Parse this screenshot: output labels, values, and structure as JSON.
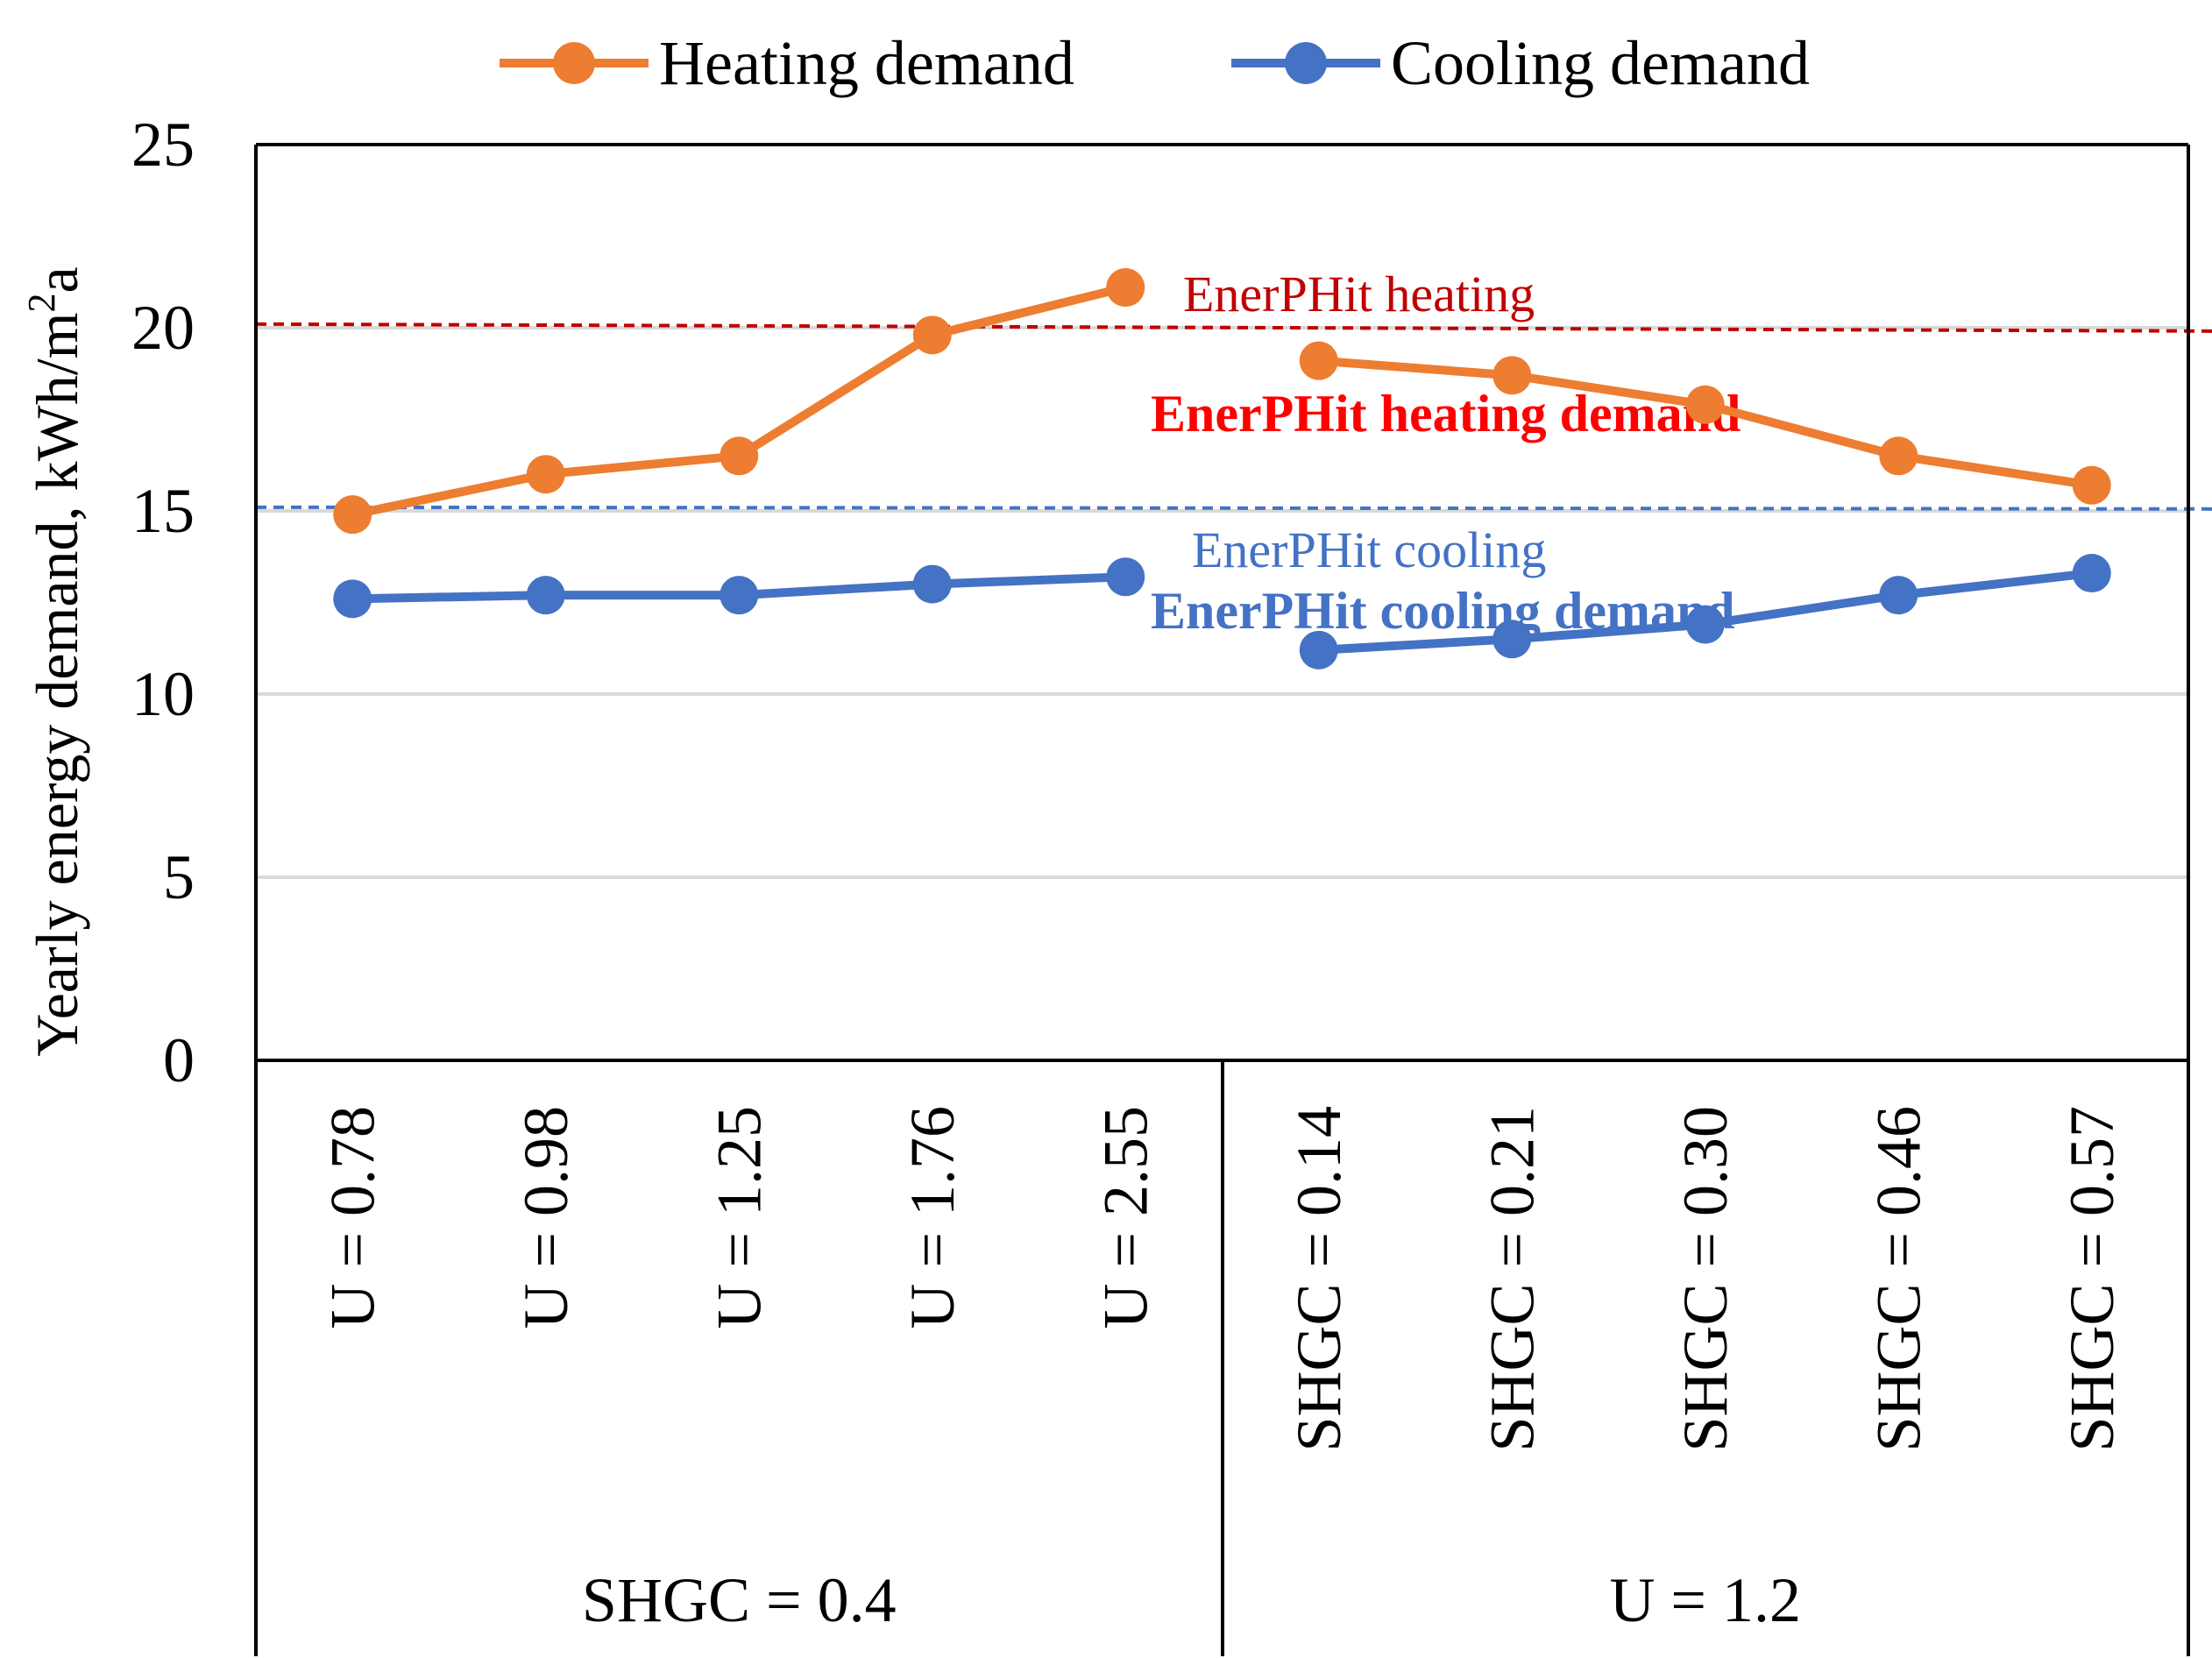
{
  "chart_data": {
    "type": "line",
    "ylabel": "Yearly energy  demand, kWh/m",
    "ylabel_sup": "2",
    "ylabel_tail": "a",
    "ylim": [
      0,
      25
    ],
    "yticks": [
      "0",
      "5",
      "10",
      "15",
      "20",
      "25"
    ],
    "categories": [
      "U = 0.78",
      "U = 0.98",
      "U = 1.25",
      "U = 1.76",
      "U = 2.55",
      "SHGC = 0.14",
      "SHGC = 0.21",
      "SHGC = 0.30",
      "SHGC = 0.46",
      "SHGC = 0.57"
    ],
    "groups": [
      {
        "label": "SHGC = 0.4",
        "start": 0,
        "end": 4
      },
      {
        "label": "U = 1.2",
        "start": 5,
        "end": 9
      }
    ],
    "series": [
      {
        "name": "Heating demand",
        "color": "#ED7D31",
        "values": [
          14.9,
          16.0,
          16.5,
          19.8,
          21.1,
          19.1,
          18.7,
          17.9,
          16.5,
          15.7
        ]
      },
      {
        "name": "Cooling demand",
        "color": "#4472C4",
        "values": [
          12.6,
          12.7,
          12.7,
          13.0,
          13.2,
          11.2,
          11.5,
          11.9,
          12.7,
          13.3
        ]
      }
    ],
    "reference_lines": [
      {
        "value": 20.1,
        "color": "#C00000",
        "label": "EnerPHit heating",
        "bold_label": "EnerPHit heating demand",
        "bold_color": "#FF0000"
      },
      {
        "value": 15.1,
        "color": "#4472C4",
        "label": "EnerPHit cooling",
        "bold_label": "EnerPHit cooling demand",
        "bold_color": "#4472C4"
      }
    ],
    "gridlines": true,
    "legend_position": "top"
  }
}
